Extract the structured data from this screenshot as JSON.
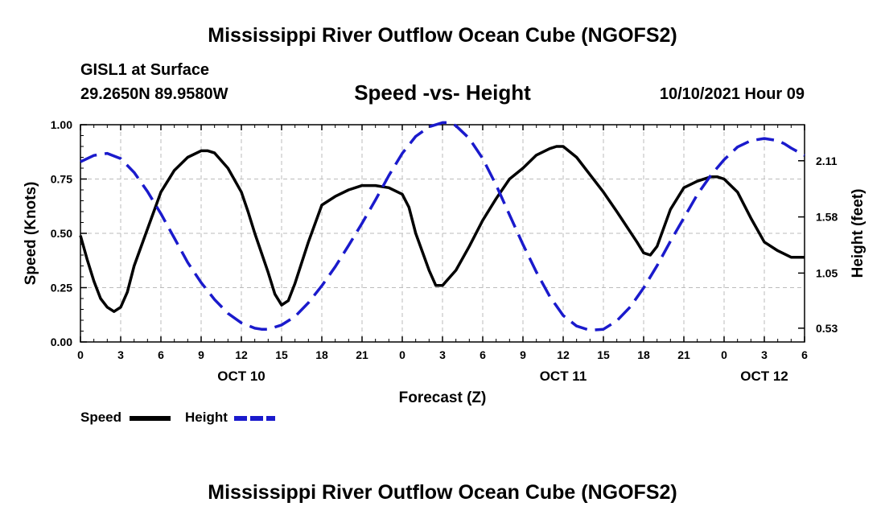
{
  "header": {
    "title": "Mississippi River Outflow Ocean Cube (NGOFS2)",
    "station": "GISL1 at Surface",
    "coordinates": "29.2650N  89.9580W",
    "subtitle": "Speed -vs- Height",
    "datetime": "10/10/2021 Hour 09"
  },
  "footer": {
    "title": "Mississippi River Outflow Ocean Cube (NGOFS2)"
  },
  "legend": {
    "speed_label": "Speed",
    "height_label": "Height"
  },
  "colors": {
    "speed": "#000000",
    "height": "#1a1acc",
    "grid": "#bbbbbb"
  },
  "chart_data": {
    "type": "line",
    "title": "Speed -vs- Height",
    "xlabel": "Forecast (Z)",
    "ylabel": "Speed (Knots)",
    "y2label": "Height (feet)",
    "xlim": [
      0,
      54
    ],
    "ylim": [
      0,
      1.0
    ],
    "y2lim": [
      0.4,
      2.45
    ],
    "x_ticks": [
      0,
      3,
      6,
      9,
      12,
      15,
      18,
      21,
      24,
      27,
      30,
      33,
      36,
      39,
      42,
      45,
      48,
      51,
      54
    ],
    "x_tick_labels": [
      "0",
      "3",
      "6",
      "9",
      "12",
      "15",
      "18",
      "21",
      "0",
      "3",
      "6",
      "9",
      "12",
      "15",
      "18",
      "21",
      "0",
      "3",
      "6"
    ],
    "date_labels": [
      {
        "x": 12,
        "label": "OCT 10"
      },
      {
        "x": 36,
        "label": "OCT 11"
      },
      {
        "x": 51,
        "label": "OCT 12"
      }
    ],
    "y_ticks": [
      0,
      0.25,
      0.5,
      0.75,
      1.0
    ],
    "y_tick_labels": [
      "0.00",
      "0.25",
      "0.50",
      "0.75",
      "1.00"
    ],
    "y2_ticks": [
      0.53,
      1.05,
      1.58,
      2.11
    ],
    "y2_tick_labels": [
      "0.53",
      "1.05",
      "1.58",
      "2.11"
    ],
    "grid": true,
    "series": [
      {
        "name": "Speed",
        "axis": "left",
        "style": "solid",
        "x": [
          0,
          0.5,
          1,
          1.5,
          2,
          2.5,
          3,
          3.5,
          4,
          5,
          6,
          7,
          8,
          9,
          9.5,
          10,
          11,
          12,
          12.5,
          13,
          14,
          14.5,
          15,
          15.5,
          16,
          17,
          18,
          19,
          20,
          21,
          22,
          23,
          24,
          24.5,
          25,
          26,
          26.5,
          27,
          28,
          29,
          30,
          31,
          32,
          33,
          34,
          35,
          35.5,
          36,
          37,
          38,
          39,
          40,
          41.5,
          42,
          42.5,
          43,
          44,
          45,
          46,
          47,
          47.5,
          48,
          49,
          50,
          51,
          52,
          53,
          54
        ],
        "values": [
          0.49,
          0.38,
          0.28,
          0.2,
          0.16,
          0.14,
          0.16,
          0.23,
          0.35,
          0.52,
          0.69,
          0.79,
          0.85,
          0.88,
          0.88,
          0.87,
          0.8,
          0.69,
          0.6,
          0.5,
          0.32,
          0.22,
          0.17,
          0.19,
          0.27,
          0.46,
          0.63,
          0.67,
          0.7,
          0.72,
          0.72,
          0.71,
          0.68,
          0.62,
          0.5,
          0.33,
          0.26,
          0.26,
          0.33,
          0.44,
          0.56,
          0.66,
          0.75,
          0.8,
          0.86,
          0.89,
          0.9,
          0.9,
          0.85,
          0.77,
          0.69,
          0.6,
          0.46,
          0.41,
          0.4,
          0.44,
          0.61,
          0.71,
          0.74,
          0.76,
          0.76,
          0.75,
          0.69,
          0.57,
          0.46,
          0.42,
          0.39,
          0.39
        ]
      },
      {
        "name": "Height",
        "axis": "right",
        "style": "dashed",
        "x": [
          0,
          1,
          2,
          3,
          4,
          5,
          6,
          7,
          8,
          9,
          10,
          11,
          12,
          13,
          13.5,
          14,
          15,
          16,
          17,
          18,
          19,
          20,
          21,
          22,
          23,
          24,
          25,
          26,
          27,
          27.5,
          28,
          29,
          30,
          31,
          32,
          33,
          34,
          35,
          36,
          37,
          38,
          39,
          40,
          41,
          42,
          43,
          44,
          45,
          46,
          47,
          48,
          49,
          50,
          51,
          52,
          52.5,
          53,
          54
        ],
        "values": [
          2.1,
          2.16,
          2.18,
          2.13,
          2.0,
          1.82,
          1.61,
          1.38,
          1.15,
          0.96,
          0.8,
          0.67,
          0.58,
          0.53,
          0.52,
          0.52,
          0.56,
          0.64,
          0.77,
          0.93,
          1.11,
          1.31,
          1.52,
          1.74,
          1.97,
          2.18,
          2.34,
          2.43,
          2.47,
          2.47,
          2.44,
          2.32,
          2.13,
          1.88,
          1.6,
          1.32,
          1.06,
          0.83,
          0.65,
          0.55,
          0.51,
          0.52,
          0.6,
          0.73,
          0.91,
          1.12,
          1.35,
          1.57,
          1.79,
          1.97,
          2.12,
          2.24,
          2.3,
          2.32,
          2.3,
          2.27,
          2.23,
          2.16
        ]
      }
    ]
  }
}
